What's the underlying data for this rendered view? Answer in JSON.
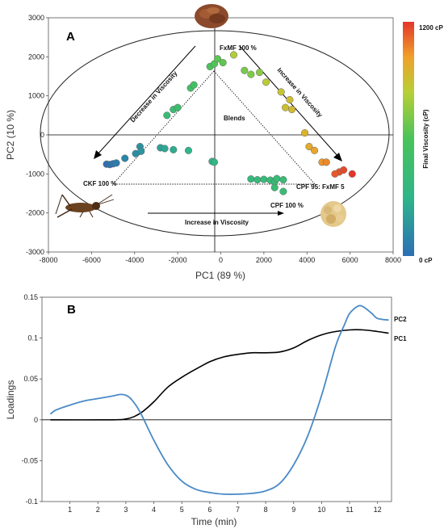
{
  "chart_data": [
    {
      "type": "scatter",
      "panel_label": "A",
      "xlabel": "PC1 (89 %)",
      "ylabel": "PC2 (10 %)",
      "xlim": [
        -8000,
        8000
      ],
      "ylim": [
        -3000,
        3000
      ],
      "xticks": [
        "-8000",
        "-6000",
        "-4000",
        "-2000",
        "0",
        "2000",
        "4000",
        "6000",
        "8000"
      ],
      "yticks": [
        "3000",
        "2000",
        "1000",
        "0",
        "-1000",
        "-2000",
        "-3000"
      ],
      "colorbar": {
        "label": "Final Viscosity (cP)",
        "max_label": "1200 cP",
        "min_label": "0 cP",
        "min": 0,
        "max": 1200
      },
      "annotations": {
        "fxmf": "FxMF 100 %",
        "blends": "Blends",
        "ckf": "CKF 100 %",
        "cpf": "CPF 100 %",
        "cpf_fxmf": "CPF 95: FxMF 5",
        "dec_visc": "Decrease in Viscosity",
        "inc_visc_right": "Increase in Viscosity",
        "inc_visc_bottom": "Increase in Viscosity"
      },
      "points": [
        {
          "x": -5300,
          "y": -750,
          "v": 10
        },
        {
          "x": -5150,
          "y": -760,
          "v": 20
        },
        {
          "x": -5000,
          "y": -740,
          "v": 35
        },
        {
          "x": -4850,
          "y": -720,
          "v": 60
        },
        {
          "x": -4450,
          "y": -600,
          "v": 90
        },
        {
          "x": -3950,
          "y": -480,
          "v": 130
        },
        {
          "x": -3750,
          "y": -300,
          "v": 150
        },
        {
          "x": -3700,
          "y": -420,
          "v": 160
        },
        {
          "x": -2800,
          "y": -330,
          "v": 220
        },
        {
          "x": -2600,
          "y": -350,
          "v": 240
        },
        {
          "x": -2200,
          "y": -380,
          "v": 260
        },
        {
          "x": -1500,
          "y": -400,
          "v": 300
        },
        {
          "x": -400,
          "y": -680,
          "v": 330
        },
        {
          "x": -300,
          "y": -700,
          "v": 340
        },
        {
          "x": -2500,
          "y": 500,
          "v": 420
        },
        {
          "x": -2200,
          "y": 650,
          "v": 450
        },
        {
          "x": -2000,
          "y": 700,
          "v": 460
        },
        {
          "x": -1400,
          "y": 1200,
          "v": 520
        },
        {
          "x": -1250,
          "y": 1280,
          "v": 540
        },
        {
          "x": -500,
          "y": 1750,
          "v": 600
        },
        {
          "x": -300,
          "y": 1820,
          "v": 620
        },
        {
          "x": -150,
          "y": 1950,
          "v": 640
        },
        {
          "x": 100,
          "y": 1850,
          "v": 650
        },
        {
          "x": 1100,
          "y": 1650,
          "v": 700
        },
        {
          "x": 1400,
          "y": 1550,
          "v": 720
        },
        {
          "x": 1800,
          "y": 1600,
          "v": 740
        },
        {
          "x": 600,
          "y": 2050,
          "v": 820
        },
        {
          "x": 2100,
          "y": 1350,
          "v": 850
        },
        {
          "x": 2800,
          "y": 1100,
          "v": 880
        },
        {
          "x": 3000,
          "y": 700,
          "v": 900
        },
        {
          "x": 3200,
          "y": 900,
          "v": 910
        },
        {
          "x": 3300,
          "y": 650,
          "v": 920
        },
        {
          "x": 3900,
          "y": 50,
          "v": 950
        },
        {
          "x": 4100,
          "y": -300,
          "v": 980
        },
        {
          "x": 4350,
          "y": -400,
          "v": 1000
        },
        {
          "x": 4700,
          "y": -700,
          "v": 1040
        },
        {
          "x": 4900,
          "y": -700,
          "v": 1060
        },
        {
          "x": 5500,
          "y": -950,
          "v": 1150
        },
        {
          "x": 5700,
          "y": -900,
          "v": 1170
        },
        {
          "x": 5300,
          "y": -1000,
          "v": 1140
        },
        {
          "x": 6100,
          "y": -1000,
          "v": 1200
        },
        {
          "x": 1400,
          "y": -1130,
          "v": 380
        },
        {
          "x": 1700,
          "y": -1150,
          "v": 390
        },
        {
          "x": 2000,
          "y": -1140,
          "v": 400
        },
        {
          "x": 2300,
          "y": -1160,
          "v": 410
        },
        {
          "x": 2500,
          "y": -1200,
          "v": 415
        },
        {
          "x": 2600,
          "y": -1120,
          "v": 420
        },
        {
          "x": 2900,
          "y": -1150,
          "v": 425
        },
        {
          "x": 2500,
          "y": -1350,
          "v": 430
        },
        {
          "x": 2900,
          "y": -1450,
          "v": 440
        }
      ]
    },
    {
      "type": "line",
      "panel_label": "B",
      "xlabel": "Time (min)",
      "ylabel": "Loadings",
      "xlim": [
        0,
        12.5
      ],
      "ylim": [
        -0.1,
        0.15
      ],
      "xticks": [
        "1",
        "2",
        "3",
        "4",
        "5",
        "6",
        "7",
        "8",
        "9",
        "10",
        "11",
        "12"
      ],
      "yticks": [
        "0.15",
        "0.1",
        "0.05",
        "0",
        "-0.05",
        "-0.1"
      ],
      "colors": {
        "PC1": "#000000",
        "PC2": "#4a8ac6"
      },
      "series": [
        {
          "name": "PC1",
          "x": [
            0.3,
            2.5,
            3.0,
            3.3,
            3.6,
            4.0,
            4.5,
            5.0,
            5.5,
            6.0,
            6.5,
            7.0,
            7.5,
            8.0,
            8.5,
            9.0,
            9.5,
            10.0,
            10.5,
            11.0,
            11.5,
            12.0,
            12.4
          ],
          "y": [
            0.0,
            0.0,
            0.001,
            0.004,
            0.01,
            0.022,
            0.04,
            0.052,
            0.062,
            0.071,
            0.077,
            0.08,
            0.082,
            0.082,
            0.083,
            0.088,
            0.097,
            0.104,
            0.108,
            0.11,
            0.11,
            0.108,
            0.106
          ]
        },
        {
          "name": "PC2",
          "x": [
            0.3,
            0.5,
            1.0,
            1.5,
            2.0,
            2.5,
            2.8,
            3.0,
            3.2,
            3.5,
            4.0,
            4.5,
            5.0,
            5.5,
            6.0,
            6.5,
            7.0,
            7.5,
            8.0,
            8.5,
            9.0,
            9.5,
            10.0,
            10.5,
            10.8,
            11.0,
            11.3,
            11.5,
            11.8,
            12.0,
            12.4
          ],
          "y": [
            0.007,
            0.012,
            0.018,
            0.023,
            0.026,
            0.029,
            0.031,
            0.03,
            0.025,
            0.01,
            -0.025,
            -0.055,
            -0.075,
            -0.085,
            -0.089,
            -0.091,
            -0.091,
            -0.09,
            -0.087,
            -0.078,
            -0.055,
            -0.02,
            0.03,
            0.09,
            0.115,
            0.13,
            0.139,
            0.138,
            0.13,
            0.124,
            0.122
          ]
        }
      ]
    }
  ]
}
